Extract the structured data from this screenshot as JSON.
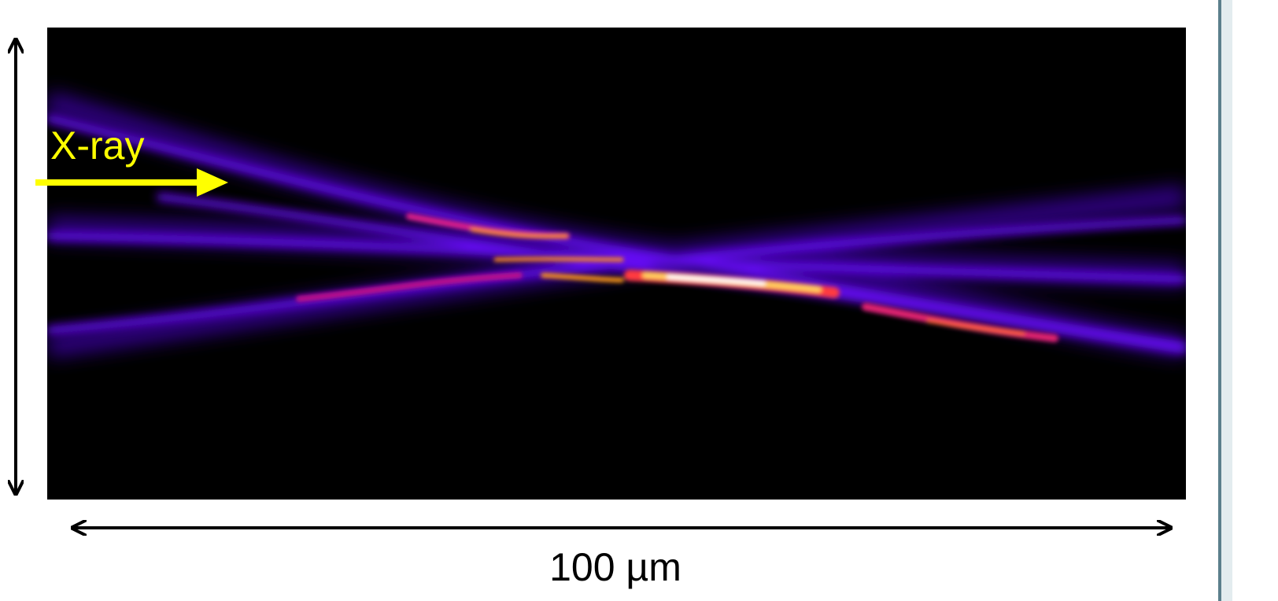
{
  "labels": {
    "beam": "X-ray",
    "scale": "100 µm"
  }
}
